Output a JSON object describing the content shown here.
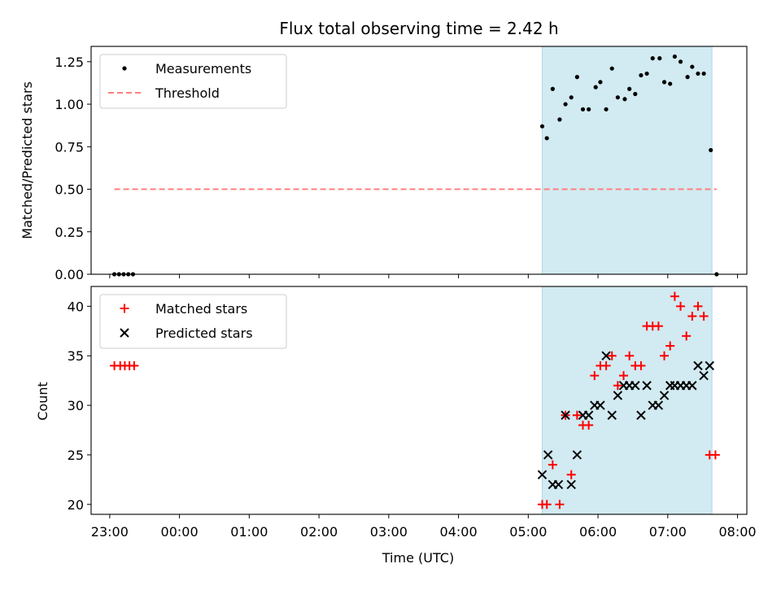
{
  "chart_data": [
    {
      "type": "scatter",
      "title": "Flux total observing time = 2.42 h",
      "xlabel": "",
      "ylabel": "Matched/Predicted stars",
      "xlim": [
        "22:44",
        "08:08"
      ],
      "ylim": [
        0.0,
        1.34
      ],
      "yticks": [
        "0.00",
        "0.25",
        "0.50",
        "0.75",
        "1.00",
        "1.25"
      ],
      "ytick_values": [
        0.0,
        0.25,
        0.5,
        0.75,
        1.0,
        1.25
      ],
      "highlight_span": [
        "05:12",
        "07:38"
      ],
      "highlight_color": "#add8e6",
      "legend_position": "upper-left",
      "series": [
        {
          "name": "Measurements",
          "kind": "scatter",
          "color": "#000000",
          "points": [
            [
              "23:04",
              0.0
            ],
            [
              "23:08",
              0.0
            ],
            [
              "23:12",
              0.0
            ],
            [
              "23:16",
              0.0
            ],
            [
              "23:20",
              0.0
            ],
            [
              "05:12",
              0.87
            ],
            [
              "05:16",
              0.8
            ],
            [
              "05:21",
              1.09
            ],
            [
              "05:27",
              0.91
            ],
            [
              "05:32",
              1.0
            ],
            [
              "05:37",
              1.04
            ],
            [
              "05:42",
              1.16
            ],
            [
              "05:47",
              0.97
            ],
            [
              "05:52",
              0.97
            ],
            [
              "05:58",
              1.1
            ],
            [
              "06:02",
              1.13
            ],
            [
              "06:07",
              0.97
            ],
            [
              "06:12",
              1.21
            ],
            [
              "06:17",
              1.04
            ],
            [
              "06:23",
              1.03
            ],
            [
              "06:27",
              1.09
            ],
            [
              "06:32",
              1.06
            ],
            [
              "06:37",
              1.17
            ],
            [
              "06:42",
              1.18
            ],
            [
              "06:47",
              1.27
            ],
            [
              "06:53",
              1.27
            ],
            [
              "06:57",
              1.13
            ],
            [
              "07:02",
              1.12
            ],
            [
              "07:06",
              1.28
            ],
            [
              "07:11",
              1.25
            ],
            [
              "07:17",
              1.16
            ],
            [
              "07:21",
              1.22
            ],
            [
              "07:26",
              1.18
            ],
            [
              "07:31",
              1.18
            ],
            [
              "07:37",
              0.73
            ],
            [
              "07:42",
              0.0
            ]
          ]
        },
        {
          "name": "Threshold",
          "kind": "line",
          "style": "dashed",
          "color": "#ff7f7f",
          "points": [
            [
              "23:04",
              0.5
            ],
            [
              "07:42",
              0.5
            ]
          ]
        }
      ]
    },
    {
      "type": "scatter",
      "title": "",
      "xlabel": "Time (UTC)",
      "ylabel": "Count",
      "xlim": [
        "22:44",
        "08:08"
      ],
      "ylim": [
        19,
        42
      ],
      "yticks": [
        "20",
        "25",
        "30",
        "35",
        "40"
      ],
      "ytick_values": [
        20,
        25,
        30,
        35,
        40
      ],
      "xticks": [
        "23:00",
        "00:00",
        "01:00",
        "02:00",
        "03:00",
        "04:00",
        "05:00",
        "06:00",
        "07:00",
        "08:00"
      ],
      "highlight_span": [
        "05:12",
        "07:38"
      ],
      "highlight_color": "#add8e6",
      "legend_position": "upper-left",
      "series": [
        {
          "name": "Matched stars",
          "marker": "plus",
          "color": "#ff0000",
          "points": [
            [
              "23:04",
              34
            ],
            [
              "23:09",
              34
            ],
            [
              "23:13",
              34
            ],
            [
              "23:17",
              34
            ],
            [
              "23:21",
              34
            ],
            [
              "05:12",
              20
            ],
            [
              "05:16",
              20
            ],
            [
              "05:21",
              24
            ],
            [
              "05:27",
              20
            ],
            [
              "05:32",
              29
            ],
            [
              "05:37",
              23
            ],
            [
              "05:42",
              29
            ],
            [
              "05:47",
              28
            ],
            [
              "05:52",
              28
            ],
            [
              "05:57",
              33
            ],
            [
              "06:02",
              34
            ],
            [
              "06:07",
              34
            ],
            [
              "06:12",
              35
            ],
            [
              "06:17",
              32
            ],
            [
              "06:22",
              33
            ],
            [
              "06:27",
              35
            ],
            [
              "06:32",
              34
            ],
            [
              "06:37",
              34
            ],
            [
              "06:42",
              38
            ],
            [
              "06:47",
              38
            ],
            [
              "06:52",
              38
            ],
            [
              "06:57",
              35
            ],
            [
              "07:02",
              36
            ],
            [
              "07:06",
              41
            ],
            [
              "07:11",
              40
            ],
            [
              "07:16",
              37
            ],
            [
              "07:21",
              39
            ],
            [
              "07:26",
              40
            ],
            [
              "07:31",
              39
            ],
            [
              "07:36",
              25
            ],
            [
              "07:41",
              25
            ]
          ]
        },
        {
          "name": "Predicted stars",
          "marker": "x",
          "color": "#000000",
          "points": [
            [
              "05:12",
              23
            ],
            [
              "05:17",
              25
            ],
            [
              "05:21",
              22
            ],
            [
              "05:26",
              22
            ],
            [
              "05:32",
              29
            ],
            [
              "05:37",
              22
            ],
            [
              "05:42",
              25
            ],
            [
              "05:47",
              29
            ],
            [
              "05:52",
              29
            ],
            [
              "05:57",
              30
            ],
            [
              "06:02",
              30
            ],
            [
              "06:07",
              35
            ],
            [
              "06:12",
              29
            ],
            [
              "06:17",
              31
            ],
            [
              "06:22",
              32
            ],
            [
              "06:27",
              32
            ],
            [
              "06:32",
              32
            ],
            [
              "06:37",
              29
            ],
            [
              "06:42",
              32
            ],
            [
              "06:47",
              30
            ],
            [
              "06:52",
              30
            ],
            [
              "06:57",
              31
            ],
            [
              "07:02",
              32
            ],
            [
              "07:06",
              32
            ],
            [
              "07:11",
              32
            ],
            [
              "07:16",
              32
            ],
            [
              "07:21",
              32
            ],
            [
              "07:26",
              34
            ],
            [
              "07:31",
              33
            ],
            [
              "07:36",
              34
            ]
          ]
        }
      ]
    }
  ]
}
